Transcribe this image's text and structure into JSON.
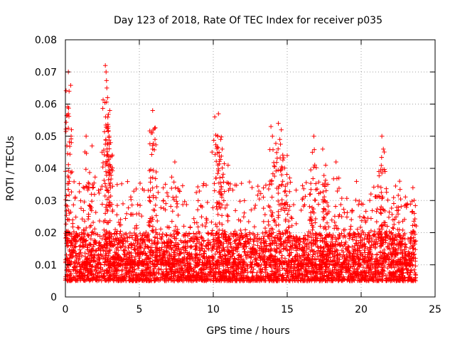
{
  "chart_data": {
    "type": "scatter",
    "title": "Day 123 of 2018, Rate Of TEC Index for receiver p035",
    "xlabel": "GPS time / hours",
    "ylabel": "ROTI / TECUs",
    "xlim": [
      0,
      25
    ],
    "ylim": [
      0,
      0.08
    ],
    "xticks": [
      0,
      5,
      10,
      15,
      20,
      25
    ],
    "xtick_labels": [
      "0",
      "5",
      "10",
      "15",
      "20",
      "25"
    ],
    "yticks": [
      0,
      0.01,
      0.02,
      0.03,
      0.04,
      0.05,
      0.06,
      0.07,
      0.08
    ],
    "ytick_labels": [
      "0",
      "0.01",
      "0.02",
      "0.03",
      "0.04",
      "0.05",
      "0.06",
      "0.07",
      "0.08"
    ],
    "grid": true,
    "marker": "+",
    "color": "#ff0000",
    "x_range_of_data": [
      0,
      23.7
    ],
    "baseline_band": [
      0.005,
      0.02
    ],
    "peaks": [
      {
        "x": 0.2,
        "y": 0.07
      },
      {
        "x": 0.25,
        "y": 0.064
      },
      {
        "x": 0.2,
        "y": 0.057
      },
      {
        "x": 0.1,
        "y": 0.047
      },
      {
        "x": 1.4,
        "y": 0.05
      },
      {
        "x": 1.8,
        "y": 0.047
      },
      {
        "x": 2.7,
        "y": 0.072
      },
      {
        "x": 2.75,
        "y": 0.07
      },
      {
        "x": 2.8,
        "y": 0.065
      },
      {
        "x": 2.85,
        "y": 0.062
      },
      {
        "x": 3.0,
        "y": 0.058
      },
      {
        "x": 2.9,
        "y": 0.053
      },
      {
        "x": 2.95,
        "y": 0.05
      },
      {
        "x": 3.05,
        "y": 0.048
      },
      {
        "x": 5.9,
        "y": 0.058
      },
      {
        "x": 5.95,
        "y": 0.052
      },
      {
        "x": 5.9,
        "y": 0.046
      },
      {
        "x": 7.4,
        "y": 0.042
      },
      {
        "x": 10.1,
        "y": 0.056
      },
      {
        "x": 10.35,
        "y": 0.057
      },
      {
        "x": 10.3,
        "y": 0.05
      },
      {
        "x": 10.5,
        "y": 0.049
      },
      {
        "x": 10.6,
        "y": 0.046
      },
      {
        "x": 11.0,
        "y": 0.041
      },
      {
        "x": 13.9,
        "y": 0.053
      },
      {
        "x": 14.0,
        "y": 0.05
      },
      {
        "x": 14.4,
        "y": 0.054
      },
      {
        "x": 14.6,
        "y": 0.052
      },
      {
        "x": 14.5,
        "y": 0.049
      },
      {
        "x": 15.0,
        "y": 0.044
      },
      {
        "x": 16.8,
        "y": 0.05
      },
      {
        "x": 16.7,
        "y": 0.045
      },
      {
        "x": 17.4,
        "y": 0.046
      },
      {
        "x": 17.6,
        "y": 0.041
      },
      {
        "x": 18.3,
        "y": 0.042
      },
      {
        "x": 21.4,
        "y": 0.05
      },
      {
        "x": 21.5,
        "y": 0.046
      },
      {
        "x": 21.2,
        "y": 0.039
      },
      {
        "x": 22.6,
        "y": 0.036
      },
      {
        "x": 23.5,
        "y": 0.034
      }
    ]
  }
}
